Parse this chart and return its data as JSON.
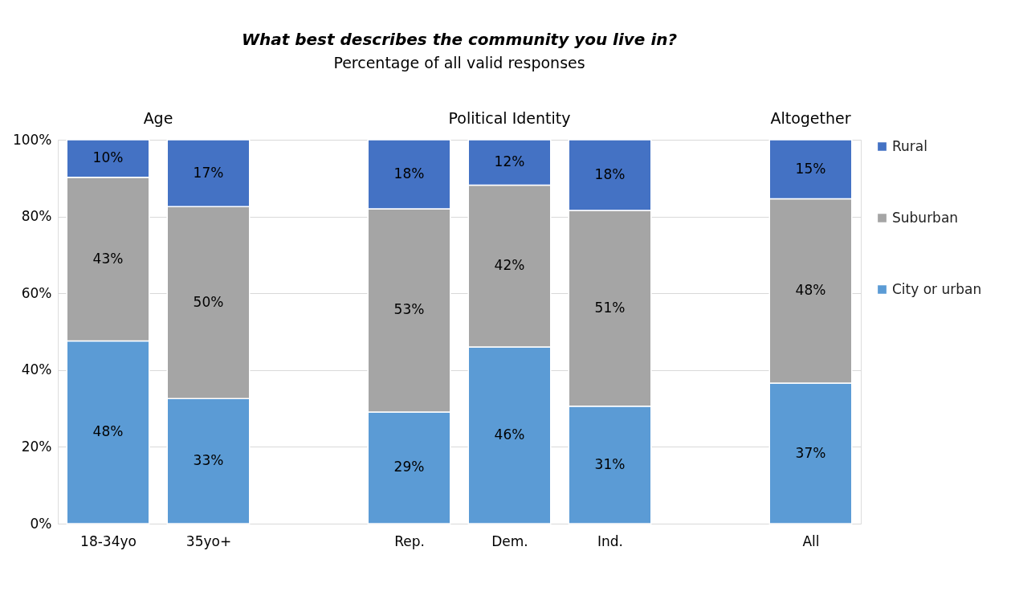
{
  "chart_data": {
    "type": "bar",
    "stacked": true,
    "title": "What best describes the community you live in?",
    "subtitle": "Percentage of all valid responses",
    "categories": [
      "18-34yo",
      "35yo+",
      null,
      "Rep.",
      "Dem.",
      "Ind.",
      null,
      "All"
    ],
    "series": [
      {
        "name": "City or urban",
        "color": "#5b9bd5",
        "values": [
          47.6,
          32.6,
          null,
          29.1,
          46.0,
          30.6,
          null,
          36.6
        ],
        "value_labels": [
          "48%",
          "33%",
          null,
          "29%",
          "46%",
          "31%",
          null,
          "37%"
        ]
      },
      {
        "name": "Suburban",
        "color": "#a5a5a5",
        "values": [
          42.6,
          50.0,
          null,
          52.9,
          42.2,
          51.0,
          null,
          48.0
        ],
        "value_labels": [
          "43%",
          "50%",
          null,
          "53%",
          "42%",
          "51%",
          null,
          "48%"
        ]
      },
      {
        "name": "Rural",
        "color": "#4472c4",
        "values": [
          9.8,
          17.4,
          null,
          18.0,
          11.8,
          18.4,
          null,
          15.4
        ],
        "value_labels": [
          "10%",
          "17%",
          null,
          "18%",
          "12%",
          "18%",
          null,
          "15%"
        ]
      }
    ],
    "annotations": [
      "Age",
      "Political Identity",
      "Altogether"
    ],
    "ylim": [
      0,
      100
    ],
    "yticks": [
      {
        "value": 0,
        "label": "0%"
      },
      {
        "value": 20,
        "label": "20%"
      },
      {
        "value": 40,
        "label": "40%"
      },
      {
        "value": 60,
        "label": "60%"
      },
      {
        "value": 80,
        "label": "80%"
      },
      {
        "value": 100,
        "label": "100%"
      }
    ],
    "grid": "y",
    "legend": "right"
  }
}
